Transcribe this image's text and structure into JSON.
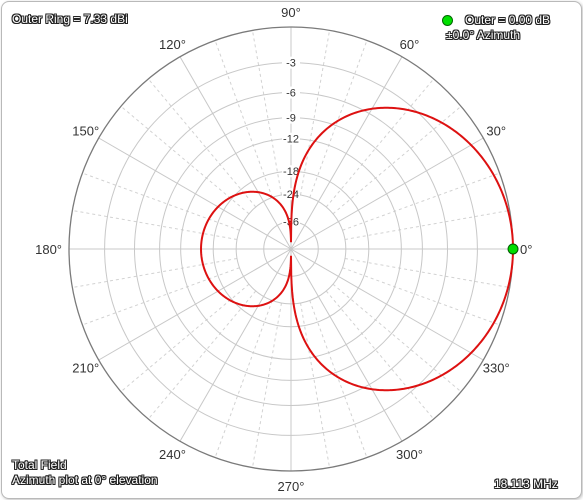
{
  "header": {
    "outer_ring": "Outer Ring = 7.33 dBi",
    "legend_label": "Outer = 0.00 dB",
    "legend_sub": "±0.0° Azimuth",
    "marker_color": "#00dd00"
  },
  "footer": {
    "field_type": "Total Field",
    "plot_desc": "Azimuth plot at 0° elevation",
    "frequency": "18.113 MHz"
  },
  "chart_data": {
    "type": "polar",
    "angular_unit": "degrees",
    "angle_labels": [
      "0°",
      "30°",
      "60°",
      "90°",
      "120°",
      "150°",
      "180°",
      "210°",
      "240°",
      "270°",
      "300°",
      "330°"
    ],
    "ring_labels": [
      "-3",
      "-6",
      "-9",
      "-12",
      "-18",
      "-24",
      "-36"
    ],
    "ring_db": [
      0,
      -3,
      -6,
      -9,
      -12,
      -18,
      -24,
      -36
    ],
    "series": [
      {
        "color": "#dd1111",
        "pattern": "cardioid",
        "front_gain_db": 0.0,
        "back_gain_db": -15.5,
        "null_az_deg": [
          90,
          270
        ]
      }
    ],
    "grid": true
  }
}
